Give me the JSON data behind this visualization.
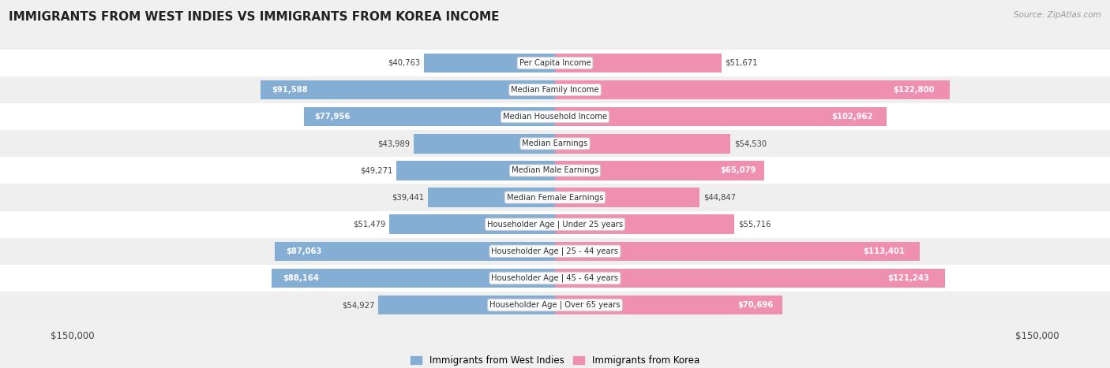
{
  "title": "IMMIGRANTS FROM WEST INDIES VS IMMIGRANTS FROM KOREA INCOME",
  "source": "Source: ZipAtlas.com",
  "categories": [
    "Per Capita Income",
    "Median Family Income",
    "Median Household Income",
    "Median Earnings",
    "Median Male Earnings",
    "Median Female Earnings",
    "Householder Age | Under 25 years",
    "Householder Age | 25 - 44 years",
    "Householder Age | 45 - 64 years",
    "Householder Age | Over 65 years"
  ],
  "west_indies_values": [
    40763,
    91588,
    77956,
    43989,
    49271,
    39441,
    51479,
    87063,
    88164,
    54927
  ],
  "korea_values": [
    51671,
    122800,
    102962,
    54530,
    65079,
    44847,
    55716,
    113401,
    121243,
    70696
  ],
  "west_indies_labels": [
    "$40,763",
    "$91,588",
    "$77,956",
    "$43,989",
    "$49,271",
    "$39,441",
    "$51,479",
    "$87,063",
    "$88,164",
    "$54,927"
  ],
  "korea_labels": [
    "$51,671",
    "$122,800",
    "$102,962",
    "$54,530",
    "$65,079",
    "$44,847",
    "$55,716",
    "$113,401",
    "$121,243",
    "$70,696"
  ],
  "max_value": 150000,
  "color_west_indies": "#85aed4",
  "color_korea": "#f090b0",
  "label_west_indies": "Immigrants from West Indies",
  "label_korea": "Immigrants from Korea",
  "bg_color": "#f0f0f0",
  "row_colors": [
    "#ffffff",
    "#efefef"
  ],
  "large_threshold": 60000
}
